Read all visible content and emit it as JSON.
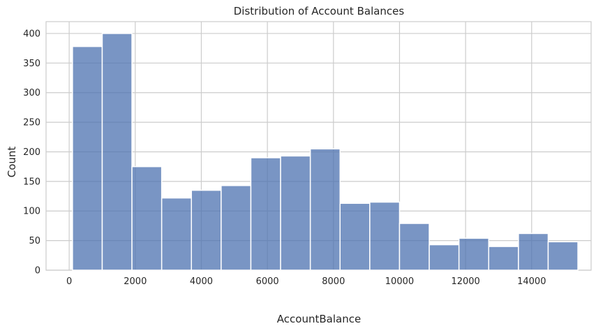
{
  "chart_data": {
    "type": "bar",
    "title": "Distribution of Account Balances",
    "xlabel": "AccountBalance",
    "ylabel": "Count",
    "xlim": [
      -700,
      15800
    ],
    "ylim": [
      0,
      420
    ],
    "xticks": [
      0,
      2000,
      4000,
      6000,
      8000,
      10000,
      12000,
      14000
    ],
    "yticks": [
      0,
      50,
      100,
      150,
      200,
      250,
      300,
      350,
      400
    ],
    "grid": true,
    "bins": [
      {
        "x0": 100,
        "x1": 1000,
        "count": 378
      },
      {
        "x0": 1000,
        "x1": 1900,
        "count": 400
      },
      {
        "x0": 1900,
        "x1": 2800,
        "count": 175
      },
      {
        "x0": 2800,
        "x1": 3700,
        "count": 122
      },
      {
        "x0": 3700,
        "x1": 4600,
        "count": 135
      },
      {
        "x0": 4600,
        "x1": 5500,
        "count": 143
      },
      {
        "x0": 5500,
        "x1": 6400,
        "count": 190
      },
      {
        "x0": 6400,
        "x1": 7300,
        "count": 193
      },
      {
        "x0": 7300,
        "x1": 8200,
        "count": 205
      },
      {
        "x0": 8200,
        "x1": 9100,
        "count": 113
      },
      {
        "x0": 9100,
        "x1": 10000,
        "count": 115
      },
      {
        "x0": 10000,
        "x1": 10900,
        "count": 79
      },
      {
        "x0": 10900,
        "x1": 11800,
        "count": 43
      },
      {
        "x0": 11800,
        "x1": 12700,
        "count": 54
      },
      {
        "x0": 12700,
        "x1": 13600,
        "count": 40
      },
      {
        "x0": 13600,
        "x1": 14500,
        "count": 62
      },
      {
        "x0": 14500,
        "x1": 15400,
        "count": 48
      }
    ],
    "bar_color": "#4c72b0",
    "grid_color": "#cccccc"
  }
}
